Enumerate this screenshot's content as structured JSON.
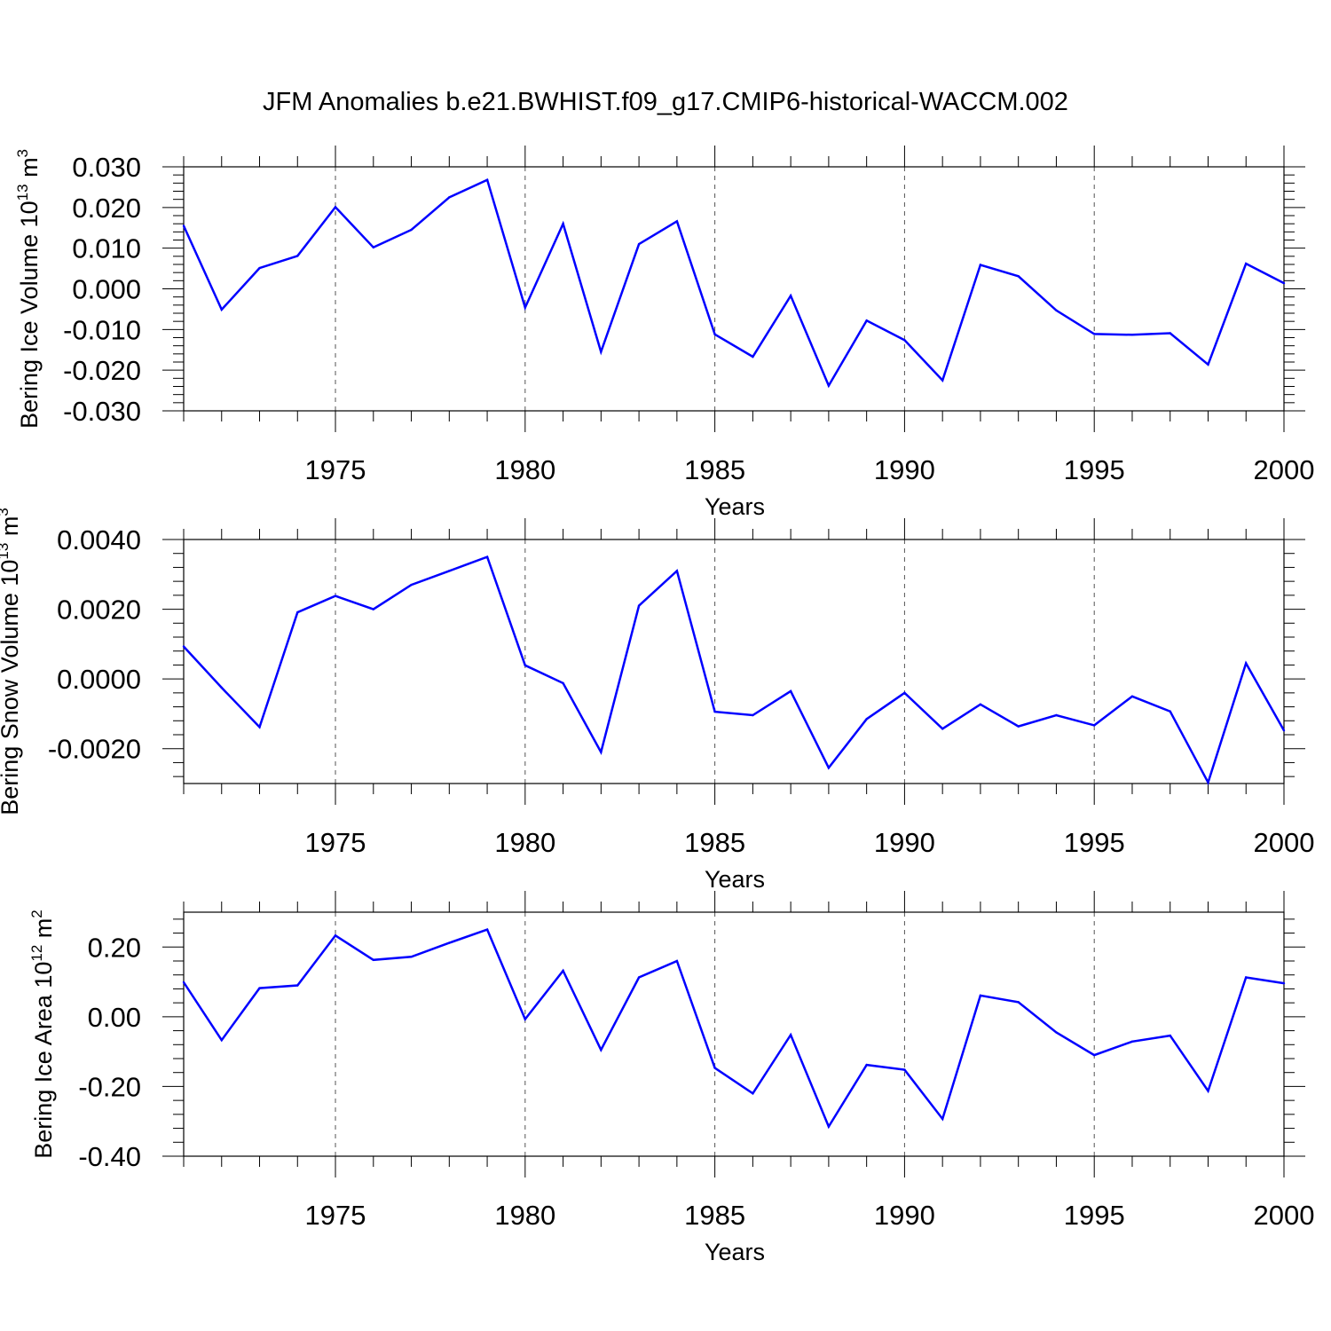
{
  "title": "JFM Anomalies b.e21.BWHIST.f09_g17.CMIP6-historical-WACCM.002",
  "colors": {
    "line": "#0000ff",
    "axis": "#000000",
    "grid": "#555555"
  },
  "chart_data": [
    {
      "type": "line",
      "ylabel_main": "Bering Ice Volume 10",
      "ylabel_exp": "13",
      "ylabel_unit": "m",
      "ylabel_unit_exp": "3",
      "xlabel": "Years",
      "xlim": [
        1971,
        2000
      ],
      "ylim": [
        -0.03,
        0.03
      ],
      "xticks": [
        1975,
        1980,
        1985,
        1990,
        1995,
        2000
      ],
      "yticks": [
        0.03,
        0.02,
        0.01,
        0.0,
        -0.01,
        -0.02,
        -0.03
      ],
      "ytick_labels": [
        "0.030",
        "0.020",
        "0.010",
        "0.000",
        "-0.010",
        "-0.020",
        "-0.030"
      ],
      "x": [
        1971,
        1972,
        1973,
        1974,
        1975,
        1976,
        1977,
        1978,
        1979,
        1980,
        1981,
        1982,
        1983,
        1984,
        1985,
        1986,
        1987,
        1988,
        1989,
        1990,
        1991,
        1992,
        1993,
        1994,
        1995,
        1996,
        1997,
        1998,
        1999,
        2000
      ],
      "values": [
        0.0155,
        -0.0051,
        0.0051,
        0.0081,
        0.0201,
        0.0102,
        0.0145,
        0.0225,
        0.0268,
        -0.0046,
        0.016,
        -0.0155,
        0.011,
        0.0166,
        -0.0112,
        -0.0167,
        -0.0017,
        -0.0238,
        -0.0078,
        -0.0126,
        -0.0225,
        0.0059,
        0.0031,
        -0.0053,
        -0.0111,
        -0.0113,
        -0.0109,
        -0.0186,
        0.0062,
        0.0014
      ]
    },
    {
      "type": "line",
      "ylabel_main": "Bering Snow Volume 10",
      "ylabel_exp": "13",
      "ylabel_unit": "m",
      "ylabel_unit_exp": "3",
      "xlabel": "Years",
      "xlim": [
        1971,
        2000
      ],
      "ylim": [
        -0.003,
        0.004
      ],
      "xticks": [
        1975,
        1980,
        1985,
        1990,
        1995,
        2000
      ],
      "yticks": [
        0.004,
        0.002,
        0.0,
        -0.002
      ],
      "ytick_labels": [
        "0.0040",
        "0.0020",
        "0.0000",
        "-0.0020"
      ],
      "x": [
        1971,
        1972,
        1973,
        1974,
        1975,
        1976,
        1977,
        1978,
        1979,
        1980,
        1981,
        1982,
        1983,
        1984,
        1985,
        1986,
        1987,
        1988,
        1989,
        1990,
        1991,
        1992,
        1993,
        1994,
        1995,
        1996,
        1997,
        1998,
        1999,
        2000
      ],
      "values": [
        0.00093,
        -0.00025,
        -0.00138,
        0.00191,
        0.00238,
        0.002,
        0.0027,
        0.0031,
        0.0035,
        0.00039,
        -0.00012,
        -0.0021,
        0.0021,
        0.0031,
        -0.00094,
        -0.00104,
        -0.00035,
        -0.00255,
        -0.00115,
        -0.0004,
        -0.00143,
        -0.00073,
        -0.00136,
        -0.00104,
        -0.00133,
        -0.0005,
        -0.00093,
        -0.00297,
        0.00045,
        -0.00148
      ]
    },
    {
      "type": "line",
      "ylabel_main": "Bering Ice Area 10",
      "ylabel_exp": "12",
      "ylabel_unit": "m",
      "ylabel_unit_exp": "2",
      "xlabel": "Years",
      "xlim": [
        1971,
        2000
      ],
      "ylim": [
        -0.4,
        0.3
      ],
      "xticks": [
        1975,
        1980,
        1985,
        1990,
        1995,
        2000
      ],
      "yticks": [
        0.2,
        0.0,
        -0.2,
        -0.4
      ],
      "ytick_labels": [
        "0.20",
        "0.00",
        "-0.20",
        "-0.40"
      ],
      "x": [
        1971,
        1972,
        1973,
        1974,
        1975,
        1976,
        1977,
        1978,
        1979,
        1980,
        1981,
        1982,
        1983,
        1984,
        1985,
        1986,
        1987,
        1988,
        1989,
        1990,
        1991,
        1992,
        1993,
        1994,
        1995,
        1996,
        1997,
        1998,
        1999,
        2000
      ],
      "values": [
        0.099,
        -0.067,
        0.082,
        0.09,
        0.233,
        0.163,
        0.172,
        0.212,
        0.25,
        -0.007,
        0.132,
        -0.095,
        0.113,
        0.16,
        -0.147,
        -0.22,
        -0.052,
        -0.315,
        -0.138,
        -0.152,
        -0.293,
        0.061,
        0.042,
        -0.045,
        -0.11,
        -0.071,
        -0.054,
        -0.213,
        0.113,
        0.096
      ]
    }
  ]
}
